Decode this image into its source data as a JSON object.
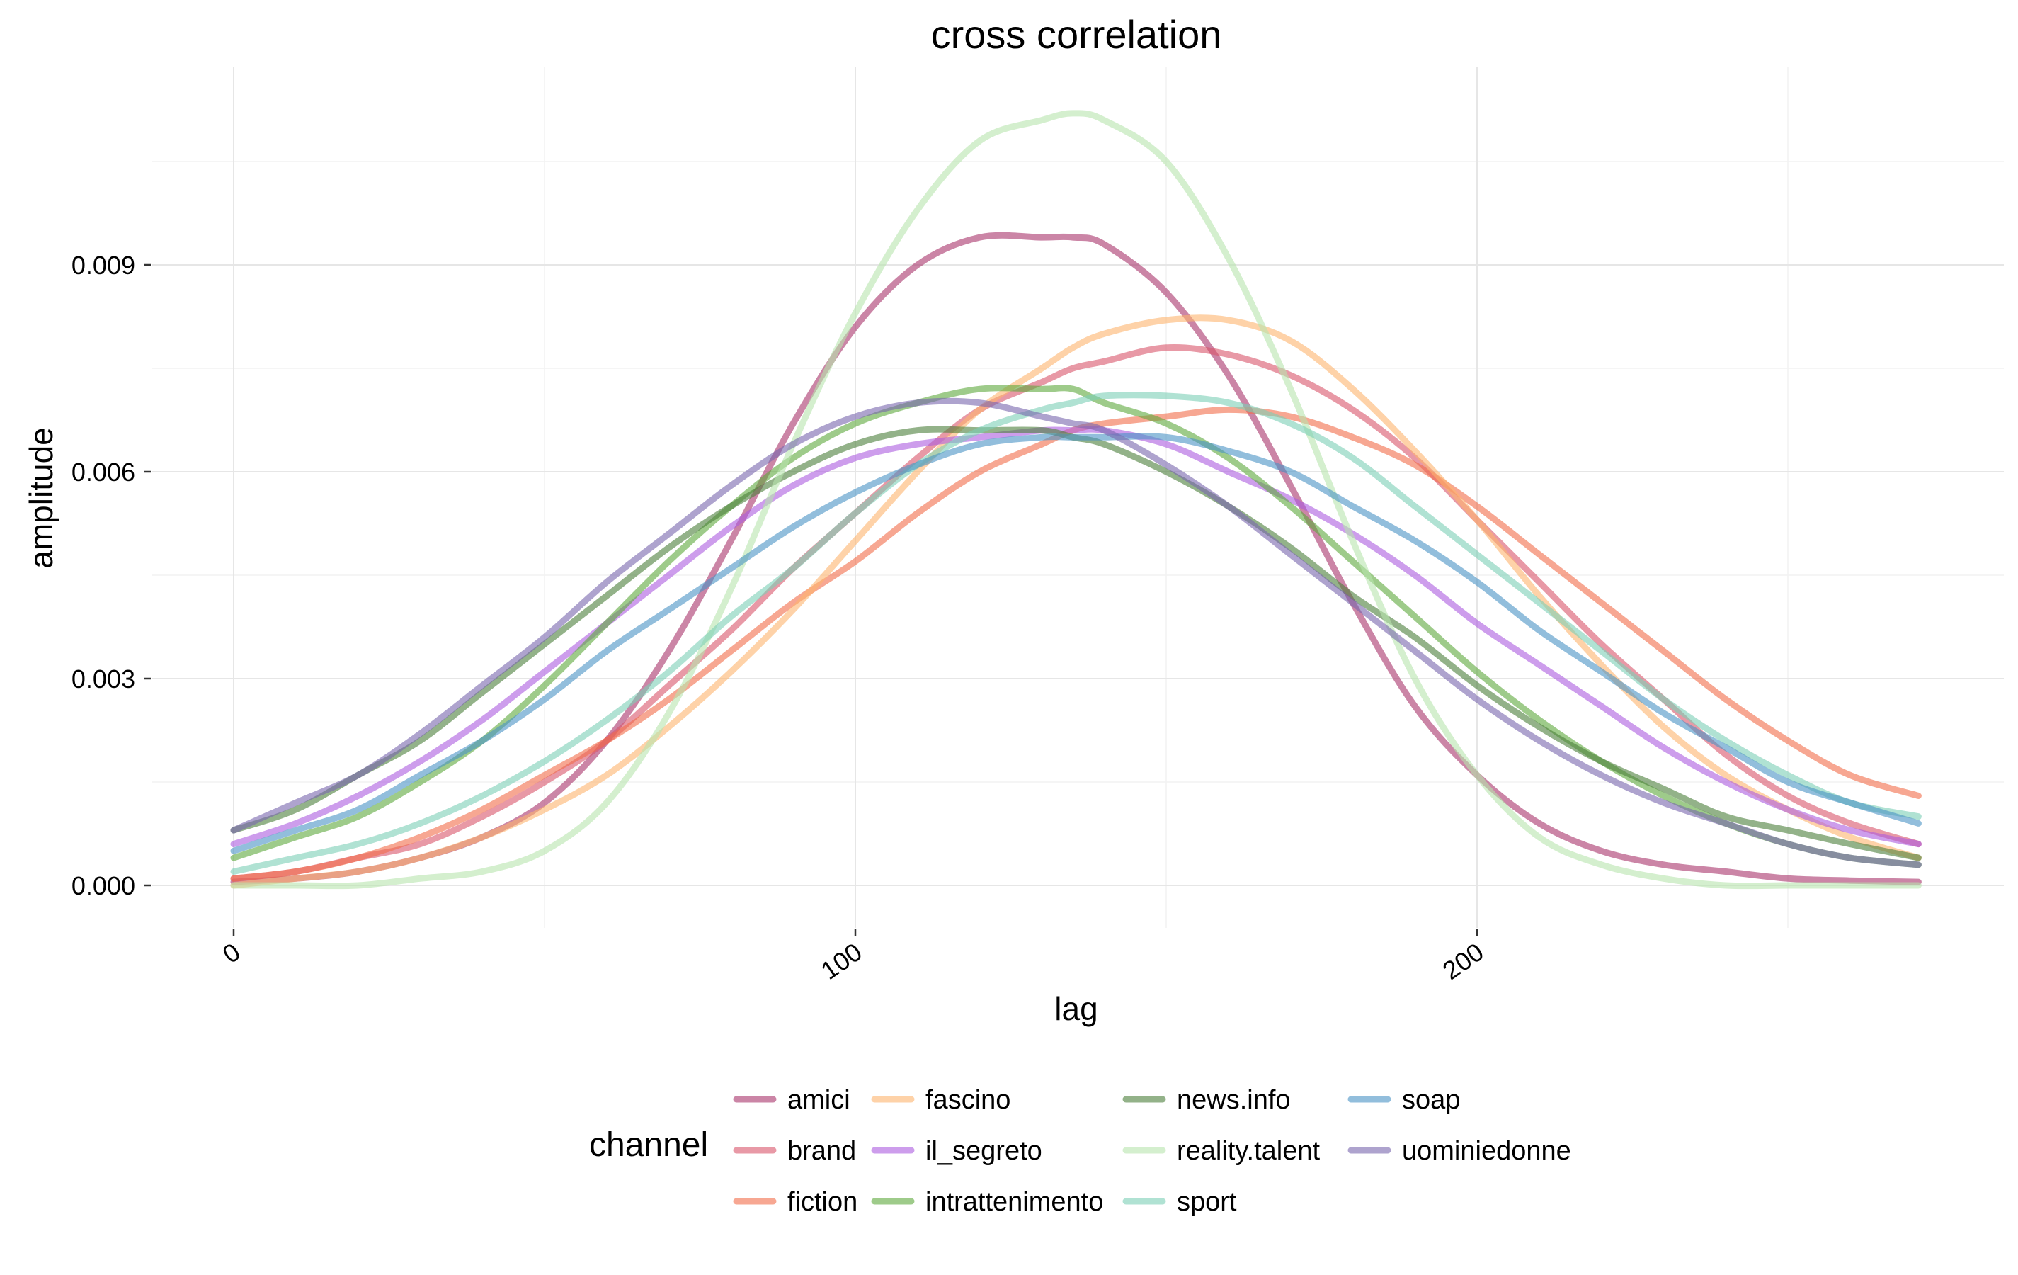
{
  "chart_data": {
    "type": "line",
    "title": "cross correlation",
    "xlabel": "lag",
    "ylabel": "amplitude",
    "xlim": [
      0,
      271
    ],
    "ylim": [
      0,
      0.0112
    ],
    "x_ticks": [
      0,
      100,
      200
    ],
    "y_ticks": [
      0.0,
      0.003,
      0.006,
      0.009
    ],
    "y_tick_labels": [
      "0.000",
      "0.003",
      "0.006",
      "0.009"
    ],
    "grid": true,
    "legend": {
      "title": "channel",
      "placement": "bottom"
    },
    "x": [
      0,
      10,
      20,
      30,
      40,
      50,
      60,
      70,
      80,
      90,
      100,
      110,
      120,
      130,
      135,
      140,
      150,
      160,
      170,
      180,
      190,
      200,
      210,
      220,
      230,
      240,
      250,
      260,
      271
    ],
    "series": [
      {
        "name": "amici",
        "color": "#a8336b",
        "values": [
          5e-05,
          0.0001,
          0.0002,
          0.0004,
          0.0007,
          0.0012,
          0.0021,
          0.0034,
          0.005,
          0.0067,
          0.0081,
          0.009,
          0.0094,
          0.0094,
          0.0094,
          0.0093,
          0.0086,
          0.0074,
          0.0058,
          0.0041,
          0.0026,
          0.0016,
          0.0009,
          0.0005,
          0.0003,
          0.0002,
          0.0001,
          7e-05,
          5e-05
        ]
      },
      {
        "name": "brand",
        "color": "#d9556a",
        "values": [
          0.0001,
          0.0002,
          0.0004,
          0.0006,
          0.001,
          0.0015,
          0.0021,
          0.0029,
          0.0037,
          0.0046,
          0.0054,
          0.0062,
          0.0069,
          0.0073,
          0.0075,
          0.0076,
          0.0078,
          0.0077,
          0.0074,
          0.0069,
          0.0062,
          0.0053,
          0.0044,
          0.0035,
          0.0027,
          0.0019,
          0.0013,
          0.0009,
          0.0006
        ]
      },
      {
        "name": "fiction",
        "color": "#f26d4a",
        "values": [
          0.0001,
          0.0002,
          0.0004,
          0.0007,
          0.0011,
          0.0016,
          0.0021,
          0.0027,
          0.0034,
          0.0041,
          0.0047,
          0.0054,
          0.006,
          0.0064,
          0.0066,
          0.0067,
          0.0068,
          0.0069,
          0.0068,
          0.0065,
          0.0061,
          0.0055,
          0.0048,
          0.0041,
          0.0034,
          0.0027,
          0.0021,
          0.0016,
          0.0013
        ]
      },
      {
        "name": "fascino",
        "color": "#fdb46e",
        "values": [
          0.0,
          0.0001,
          0.0002,
          0.0004,
          0.0007,
          0.0011,
          0.0016,
          0.0023,
          0.0031,
          0.004,
          0.005,
          0.006,
          0.0069,
          0.0075,
          0.0078,
          0.008,
          0.0082,
          0.0082,
          0.0079,
          0.0072,
          0.0063,
          0.0053,
          0.0042,
          0.0032,
          0.0023,
          0.0016,
          0.0011,
          0.0007,
          0.0004
        ]
      },
      {
        "name": "il_segreto",
        "color": "#ac5ce0",
        "values": [
          0.0006,
          0.0009,
          0.0013,
          0.0018,
          0.0024,
          0.0031,
          0.0038,
          0.0045,
          0.0052,
          0.0058,
          0.0062,
          0.0064,
          0.0065,
          0.0066,
          0.0066,
          0.0066,
          0.0064,
          0.006,
          0.0056,
          0.0051,
          0.0045,
          0.0038,
          0.0032,
          0.0026,
          0.002,
          0.0015,
          0.0011,
          0.0008,
          0.0006
        ]
      },
      {
        "name": "intrattenimento",
        "color": "#5ea83c",
        "values": [
          0.0004,
          0.0007,
          0.001,
          0.0015,
          0.0021,
          0.0029,
          0.0038,
          0.0047,
          0.0055,
          0.0062,
          0.0067,
          0.007,
          0.0072,
          0.0072,
          0.0072,
          0.007,
          0.0067,
          0.0062,
          0.0055,
          0.0047,
          0.0039,
          0.0031,
          0.0024,
          0.0018,
          0.0013,
          0.0009,
          0.0006,
          0.0004,
          0.0003
        ]
      },
      {
        "name": "news.info",
        "color": "#4b7f3a",
        "values": [
          0.0008,
          0.0011,
          0.0016,
          0.0021,
          0.0028,
          0.0035,
          0.0042,
          0.0049,
          0.0055,
          0.006,
          0.0064,
          0.0066,
          0.0066,
          0.0066,
          0.0065,
          0.0064,
          0.006,
          0.0055,
          0.0049,
          0.0042,
          0.0036,
          0.0029,
          0.0023,
          0.0018,
          0.0014,
          0.001,
          0.0008,
          0.0006,
          0.0004
        ]
      },
      {
        "name": "reality.talent",
        "color": "#b8e4ad",
        "values": [
          0.0,
          0.0,
          0.0,
          0.0001,
          0.0002,
          0.0005,
          0.0012,
          0.0025,
          0.0043,
          0.0064,
          0.0083,
          0.0098,
          0.0108,
          0.0111,
          0.0112,
          0.0111,
          0.0105,
          0.0091,
          0.0072,
          0.005,
          0.003,
          0.0016,
          0.0007,
          0.0003,
          0.0001,
          0.0,
          0.0,
          0.0,
          0.0
        ]
      },
      {
        "name": "sport",
        "color": "#7ccfb5",
        "values": [
          0.0002,
          0.0004,
          0.0006,
          0.0009,
          0.0013,
          0.0018,
          0.0024,
          0.0031,
          0.0039,
          0.0046,
          0.0054,
          0.0061,
          0.0066,
          0.0069,
          0.007,
          0.0071,
          0.0071,
          0.007,
          0.0067,
          0.0062,
          0.0055,
          0.0048,
          0.0041,
          0.0034,
          0.0027,
          0.0021,
          0.0016,
          0.0012,
          0.001
        ]
      },
      {
        "name": "soap",
        "color": "#4a92c4",
        "values": [
          0.0005,
          0.0008,
          0.0011,
          0.0016,
          0.0021,
          0.0027,
          0.0034,
          0.004,
          0.0046,
          0.0052,
          0.0057,
          0.0061,
          0.0064,
          0.0065,
          0.0065,
          0.0065,
          0.0065,
          0.0063,
          0.006,
          0.0055,
          0.005,
          0.0044,
          0.0037,
          0.0031,
          0.0025,
          0.002,
          0.0015,
          0.0012,
          0.0009
        ]
      },
      {
        "name": "uominiedonne",
        "color": "#7866ae",
        "values": [
          0.0008,
          0.0012,
          0.0016,
          0.0022,
          0.0029,
          0.0036,
          0.0044,
          0.0051,
          0.0058,
          0.0064,
          0.0068,
          0.007,
          0.007,
          0.0068,
          0.0067,
          0.0066,
          0.0061,
          0.0055,
          0.0048,
          0.0041,
          0.0034,
          0.0027,
          0.0021,
          0.0016,
          0.0012,
          0.0009,
          0.0006,
          0.0004,
          0.0003
        ]
      }
    ]
  }
}
